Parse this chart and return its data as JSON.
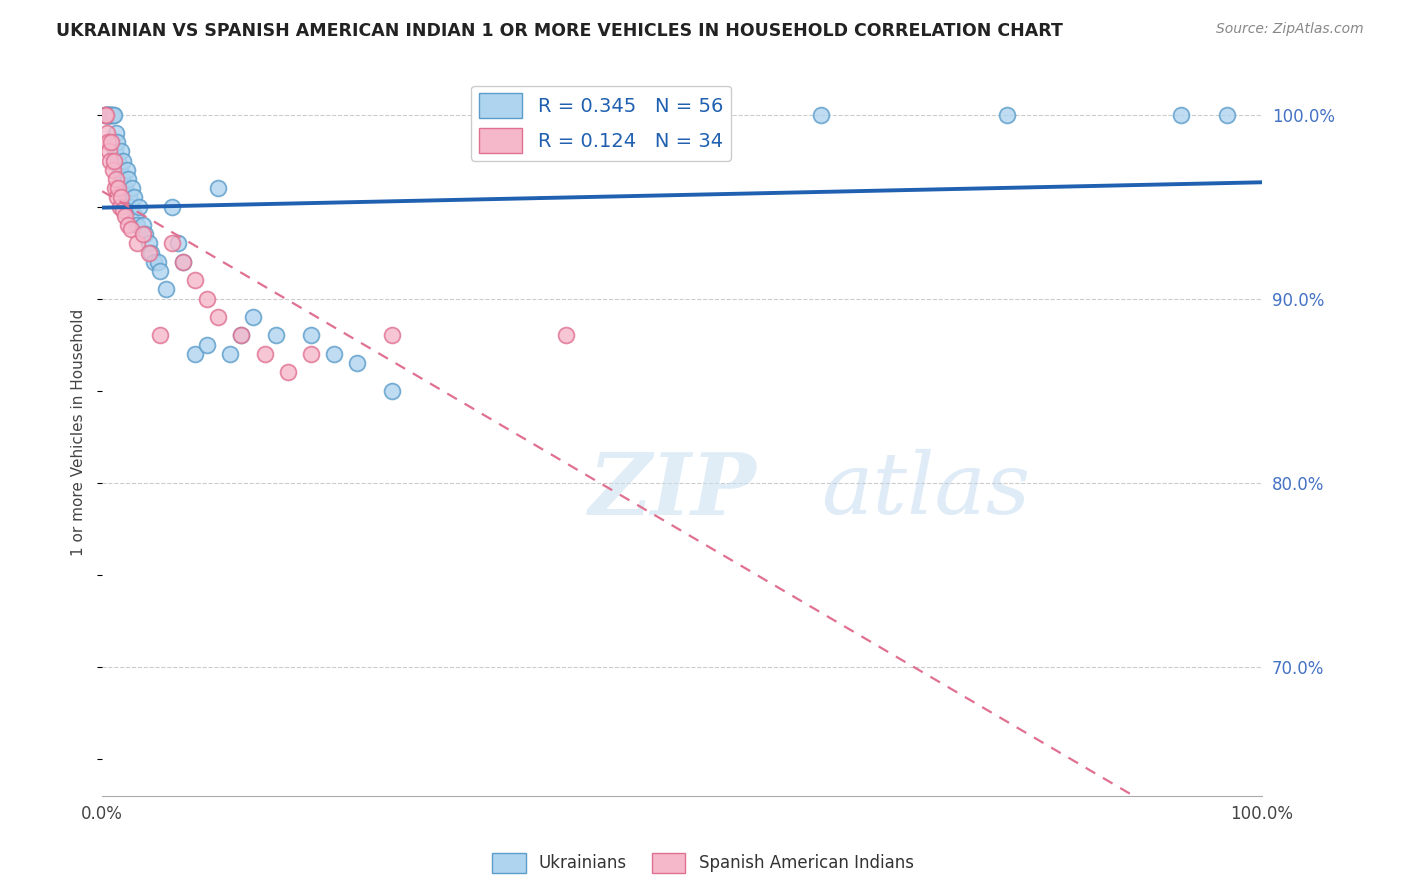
{
  "title": "UKRAINIAN VS SPANISH AMERICAN INDIAN 1 OR MORE VEHICLES IN HOUSEHOLD CORRELATION CHART",
  "source": "Source: ZipAtlas.com",
  "ylabel": "1 or more Vehicles in Household",
  "watermark_zip": "ZIP",
  "watermark_atlas": "atlas",
  "xlim": [
    0.0,
    1.0
  ],
  "ylim": [
    0.63,
    1.025
  ],
  "yticks": [
    0.7,
    0.8,
    0.9,
    1.0
  ],
  "ytick_labels": [
    "70.0%",
    "80.0%",
    "90.0%",
    "100.0%"
  ],
  "xtick_labels": [
    "0.0%",
    "100.0%"
  ],
  "blue_scatter_x": [
    0.002,
    0.003,
    0.004,
    0.004,
    0.005,
    0.005,
    0.006,
    0.007,
    0.007,
    0.008,
    0.009,
    0.01,
    0.011,
    0.012,
    0.013,
    0.014,
    0.015,
    0.016,
    0.017,
    0.018,
    0.02,
    0.021,
    0.022,
    0.023,
    0.025,
    0.026,
    0.027,
    0.028,
    0.03,
    0.032,
    0.035,
    0.037,
    0.04,
    0.042,
    0.045,
    0.048,
    0.05,
    0.055,
    0.06,
    0.065,
    0.07,
    0.08,
    0.09,
    0.1,
    0.11,
    0.12,
    0.13,
    0.15,
    0.18,
    0.2,
    0.22,
    0.25,
    0.62,
    0.78,
    0.93,
    0.97
  ],
  "blue_scatter_y": [
    1.0,
    1.0,
    1.0,
    1.0,
    1.0,
    1.0,
    1.0,
    1.0,
    1.0,
    1.0,
    1.0,
    1.0,
    0.98,
    0.99,
    0.985,
    0.975,
    0.97,
    0.98,
    0.965,
    0.975,
    0.96,
    0.97,
    0.965,
    0.955,
    0.95,
    0.96,
    0.955,
    0.945,
    0.94,
    0.95,
    0.94,
    0.935,
    0.93,
    0.925,
    0.92,
    0.92,
    0.915,
    0.905,
    0.95,
    0.93,
    0.92,
    0.87,
    0.875,
    0.96,
    0.87,
    0.88,
    0.89,
    0.88,
    0.88,
    0.87,
    0.865,
    0.85,
    1.0,
    1.0,
    1.0,
    1.0
  ],
  "pink_scatter_x": [
    0.002,
    0.003,
    0.004,
    0.005,
    0.006,
    0.007,
    0.008,
    0.009,
    0.01,
    0.011,
    0.012,
    0.013,
    0.014,
    0.015,
    0.016,
    0.018,
    0.02,
    0.022,
    0.025,
    0.03,
    0.035,
    0.04,
    0.05,
    0.06,
    0.07,
    0.08,
    0.09,
    0.1,
    0.12,
    0.14,
    0.16,
    0.18,
    0.25,
    0.4
  ],
  "pink_scatter_y": [
    1.0,
    1.0,
    0.99,
    0.985,
    0.98,
    0.975,
    0.985,
    0.97,
    0.975,
    0.96,
    0.965,
    0.955,
    0.96,
    0.95,
    0.955,
    0.948,
    0.945,
    0.94,
    0.938,
    0.93,
    0.935,
    0.925,
    0.88,
    0.93,
    0.92,
    0.91,
    0.9,
    0.89,
    0.88,
    0.87,
    0.86,
    0.87,
    0.88,
    0.88
  ],
  "blue_dot_face": "#afd4ef",
  "blue_dot_edge": "#5b9cc9",
  "pink_dot_face": "#f5b8cb",
  "pink_dot_edge": "#e07090",
  "blue_line_color": "#2060b0",
  "pink_line_color": "#e07090",
  "legend_label_blue": "R = 0.345   N = 56",
  "legend_label_pink": "R = 0.124   N = 34",
  "legend_text_color": "#2060b0",
  "right_tick_color": "#4472c4",
  "title_color": "#222222",
  "source_color": "#888888"
}
